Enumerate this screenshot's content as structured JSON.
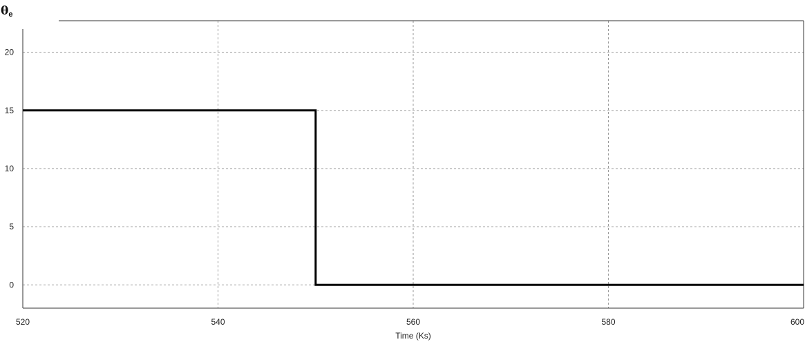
{
  "chart_data": {
    "type": "line",
    "title": "",
    "ylabel_symbol": "θ",
    "ylabel_subscript": "e",
    "xlabel": "Time (Ks)",
    "xlim": [
      520,
      600
    ],
    "ylim": [
      -2,
      22
    ],
    "xticks": [
      520,
      540,
      560,
      580,
      600
    ],
    "yticks": [
      0,
      5,
      10,
      15,
      20
    ],
    "grid": true,
    "legend": "none",
    "line_color": "#000000",
    "series": [
      {
        "x": [
          520,
          550,
          550,
          600
        ],
        "y": [
          15,
          15,
          0,
          0
        ]
      }
    ]
  }
}
